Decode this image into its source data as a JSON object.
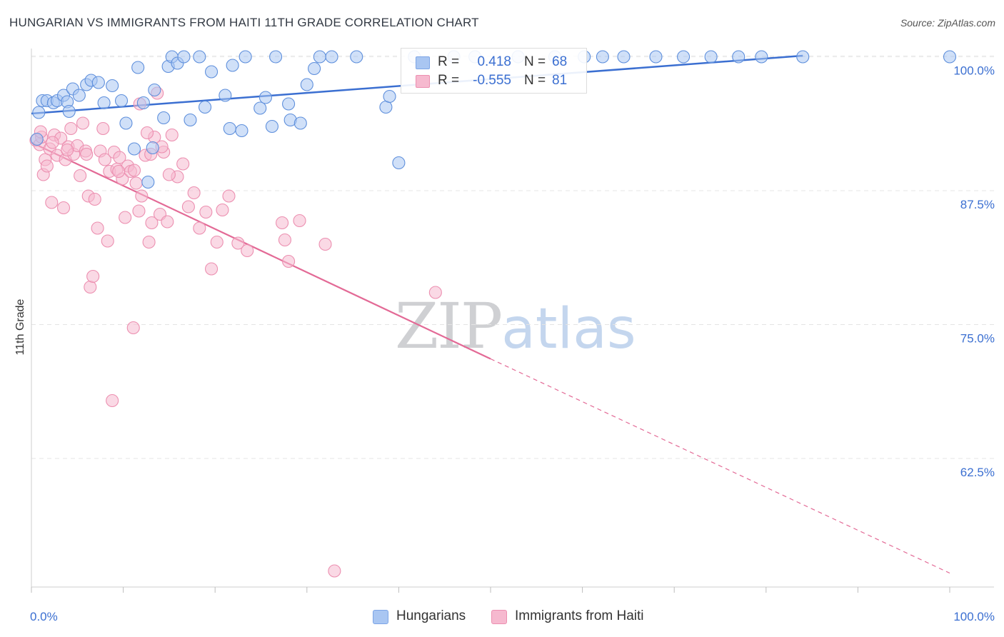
{
  "title": "HUNGARIAN VS IMMIGRANTS FROM HAITI 11TH GRADE CORRELATION CHART",
  "source": "Source: ZipAtlas.com",
  "watermark": {
    "zip": "ZIP",
    "atlas": "atlas"
  },
  "legend": {
    "rows": [
      {
        "r_label": "R =",
        "r_value": "0.418",
        "n_label": "N =",
        "n_value": "68",
        "color": "#a9c6f2"
      },
      {
        "r_label": "R =",
        "r_value": "-0.555",
        "n_label": "N =",
        "n_value": "81",
        "color": "#f6b9cf"
      }
    ]
  },
  "bottom_legend": [
    {
      "label": "Hungarians",
      "color": "#a9c6f2"
    },
    {
      "label": "Immigrants from Haiti",
      "color": "#f6b9cf"
    }
  ],
  "chart_data": {
    "type": "scatter",
    "title": "HUNGARIAN VS IMMIGRANTS FROM HAITI 11TH GRADE CORRELATION CHART",
    "xlabel": "",
    "ylabel": "11th Grade",
    "xlim": [
      0,
      100
    ],
    "ylim": [
      50.5,
      101.3
    ],
    "x_tick_labels": [
      "0.0%",
      "100.0%"
    ],
    "y_ticks": [
      62.5,
      75.0,
      87.5,
      100.0
    ],
    "y_tick_labels": [
      "62.5%",
      "75.0%",
      "87.5%",
      "100.0%"
    ],
    "grid": true,
    "colors": {
      "blue": "#3b6fd1",
      "blue_fill": "#a9c6f2",
      "pink": "#e36a96",
      "pink_fill": "#f6b9cf",
      "tick_text": "#3b6fd1"
    },
    "series": [
      {
        "name": "Hungarians",
        "trend": {
          "x": [
            0,
            84
          ],
          "y": [
            94.7,
            100.1
          ]
        },
        "points": [
          [
            0.8,
            94.8
          ],
          [
            1.2,
            95.9
          ],
          [
            1.7,
            95.9
          ],
          [
            2.4,
            95.7
          ],
          [
            2.8,
            95.9
          ],
          [
            3.5,
            96.4
          ],
          [
            3.9,
            95.8
          ],
          [
            4.1,
            94.9
          ],
          [
            4.5,
            97.0
          ],
          [
            5.2,
            96.4
          ],
          [
            6.0,
            97.4
          ],
          [
            6.5,
            97.8
          ],
          [
            7.3,
            97.6
          ],
          [
            7.9,
            95.7
          ],
          [
            8.8,
            97.3
          ],
          [
            9.8,
            95.9
          ],
          [
            10.3,
            93.8
          ],
          [
            11.2,
            91.4
          ],
          [
            11.6,
            99.0
          ],
          [
            12.2,
            95.7
          ],
          [
            12.7,
            88.3
          ],
          [
            13.2,
            91.5
          ],
          [
            13.4,
            96.9
          ],
          [
            14.4,
            94.3
          ],
          [
            14.9,
            99.1
          ],
          [
            15.3,
            100.0
          ],
          [
            15.9,
            99.4
          ],
          [
            16.6,
            100.0
          ],
          [
            17.3,
            94.1
          ],
          [
            18.3,
            100.0
          ],
          [
            18.9,
            95.3
          ],
          [
            19.6,
            98.6
          ],
          [
            21.1,
            96.4
          ],
          [
            21.6,
            93.3
          ],
          [
            21.9,
            99.2
          ],
          [
            22.9,
            93.1
          ],
          [
            23.3,
            100.0
          ],
          [
            24.9,
            95.2
          ],
          [
            25.5,
            96.2
          ],
          [
            26.2,
            93.5
          ],
          [
            26.6,
            100.0
          ],
          [
            28.0,
            95.6
          ],
          [
            28.2,
            94.1
          ],
          [
            29.3,
            93.8
          ],
          [
            30.0,
            97.4
          ],
          [
            30.8,
            98.9
          ],
          [
            31.4,
            100.0
          ],
          [
            32.7,
            100.0
          ],
          [
            35.4,
            100.0
          ],
          [
            38.6,
            95.3
          ],
          [
            39.0,
            96.3
          ],
          [
            40.0,
            90.1
          ],
          [
            41.7,
            100.0
          ],
          [
            46.0,
            100.0
          ],
          [
            48.3,
            100.0
          ],
          [
            53.0,
            100.0
          ],
          [
            57.0,
            100.0
          ],
          [
            60.2,
            100.0
          ],
          [
            62.2,
            100.0
          ],
          [
            64.5,
            100.0
          ],
          [
            68.0,
            100.0
          ],
          [
            71.0,
            100.0
          ],
          [
            74.0,
            100.0
          ],
          [
            77.0,
            100.0
          ],
          [
            79.5,
            100.0
          ],
          [
            84.0,
            100.0
          ],
          [
            100.0,
            100.0
          ],
          [
            0.6,
            92.3
          ]
        ]
      },
      {
        "name": "Immigrants from Haiti",
        "trend": {
          "x": [
            0,
            50
          ],
          "y": [
            92.0,
            71.8
          ]
        },
        "trend_extension": {
          "x": [
            50,
            100
          ],
          "y": [
            71.8,
            51.8
          ]
        },
        "points": [
          [
            0.5,
            92.2
          ],
          [
            0.9,
            91.8
          ],
          [
            1.1,
            92.5
          ],
          [
            1.3,
            89.0
          ],
          [
            1.5,
            90.4
          ],
          [
            1.7,
            89.8
          ],
          [
            2.0,
            91.4
          ],
          [
            2.2,
            86.4
          ],
          [
            2.5,
            92.7
          ],
          [
            2.8,
            90.8
          ],
          [
            3.2,
            92.4
          ],
          [
            3.5,
            85.9
          ],
          [
            3.7,
            90.4
          ],
          [
            4.0,
            91.6
          ],
          [
            4.3,
            93.3
          ],
          [
            4.6,
            90.9
          ],
          [
            5.0,
            91.7
          ],
          [
            5.3,
            88.9
          ],
          [
            5.6,
            93.8
          ],
          [
            5.9,
            91.2
          ],
          [
            6.2,
            87.0
          ],
          [
            6.4,
            78.5
          ],
          [
            6.7,
            79.5
          ],
          [
            6.9,
            86.7
          ],
          [
            7.2,
            84.0
          ],
          [
            7.5,
            91.2
          ],
          [
            7.8,
            93.3
          ],
          [
            8.0,
            90.4
          ],
          [
            8.3,
            82.8
          ],
          [
            8.5,
            89.3
          ],
          [
            8.8,
            67.9
          ],
          [
            9.0,
            91.1
          ],
          [
            9.3,
            89.5
          ],
          [
            9.6,
            90.6
          ],
          [
            9.9,
            88.6
          ],
          [
            10.2,
            85.0
          ],
          [
            10.5,
            89.8
          ],
          [
            10.8,
            89.3
          ],
          [
            11.1,
            74.7
          ],
          [
            11.4,
            88.2
          ],
          [
            11.7,
            85.6
          ],
          [
            12.0,
            87.0
          ],
          [
            12.4,
            90.8
          ],
          [
            12.8,
            82.7
          ],
          [
            13.1,
            84.5
          ],
          [
            13.4,
            92.5
          ],
          [
            13.7,
            96.6
          ],
          [
            14.0,
            85.3
          ],
          [
            14.4,
            91.1
          ],
          [
            14.8,
            84.6
          ],
          [
            15.3,
            92.7
          ],
          [
            15.9,
            88.8
          ],
          [
            16.5,
            90.0
          ],
          [
            17.1,
            86.0
          ],
          [
            17.7,
            87.3
          ],
          [
            18.3,
            84.0
          ],
          [
            19.0,
            85.5
          ],
          [
            19.6,
            80.2
          ],
          [
            20.2,
            82.7
          ],
          [
            20.8,
            85.7
          ],
          [
            21.5,
            87.0
          ],
          [
            22.5,
            82.6
          ],
          [
            23.5,
            81.9
          ],
          [
            27.3,
            84.5
          ],
          [
            27.6,
            82.9
          ],
          [
            28.0,
            80.9
          ],
          [
            29.2,
            84.7
          ],
          [
            32.0,
            82.5
          ],
          [
            33.0,
            52.0
          ],
          [
            44.0,
            78.0
          ],
          [
            1.0,
            93.0
          ],
          [
            2.3,
            92.0
          ],
          [
            3.9,
            91.3
          ],
          [
            6.0,
            90.9
          ],
          [
            9.5,
            89.3
          ],
          [
            11.2,
            89.4
          ],
          [
            11.8,
            95.6
          ],
          [
            13.0,
            90.9
          ],
          [
            15.0,
            89.0
          ],
          [
            12.6,
            92.9
          ],
          [
            14.2,
            91.6
          ]
        ]
      }
    ]
  }
}
